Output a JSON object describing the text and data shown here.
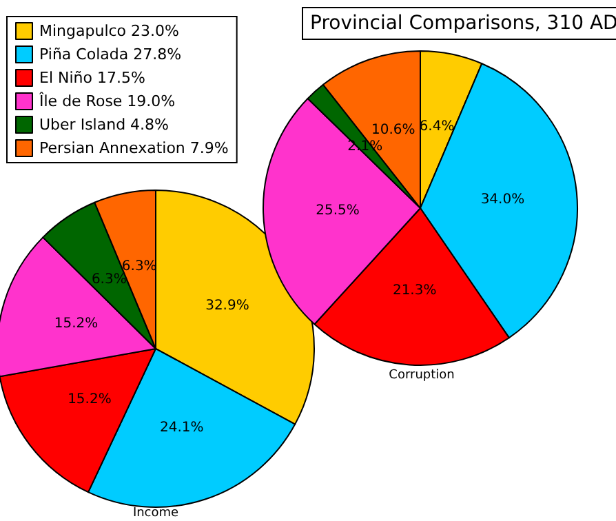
{
  "chart_data": [
    {
      "type": "pie",
      "xlabel": "Income",
      "categories": [
        "Mingapulco 23.0%",
        "Piña Colada 27.8%",
        "El Niño 17.5%",
        "Île de Rose 19.0%",
        "Uber Island 4.8%",
        "Persian Annexation 7.9%"
      ],
      "values": [
        32.9,
        24.1,
        15.2,
        15.2,
        6.3,
        6.3
      ],
      "value_labels": [
        "32.9%",
        "24.1%",
        "15.2%",
        "15.2%",
        "6.3%",
        "6.3%"
      ],
      "colors": [
        "#ffcc00",
        "#00ccff",
        "#ff0000",
        "#ff33cc",
        "#006600",
        "#ff6600"
      ],
      "legend": "top left"
    },
    {
      "type": "pie",
      "title": "Provincial Comparisons, 310 AD",
      "xlabel": "Corruption",
      "values": [
        6.4,
        34.0,
        21.3,
        25.5,
        2.1,
        10.6
      ],
      "value_labels": [
        "6.4%",
        "34.0%",
        "21.3%",
        "25.5%",
        "2.1%",
        "10.6%"
      ],
      "colors": [
        "#ffcc00",
        "#00ccff",
        "#ff0000",
        "#ff33cc",
        "#006600",
        "#ff6600"
      ]
    }
  ]
}
